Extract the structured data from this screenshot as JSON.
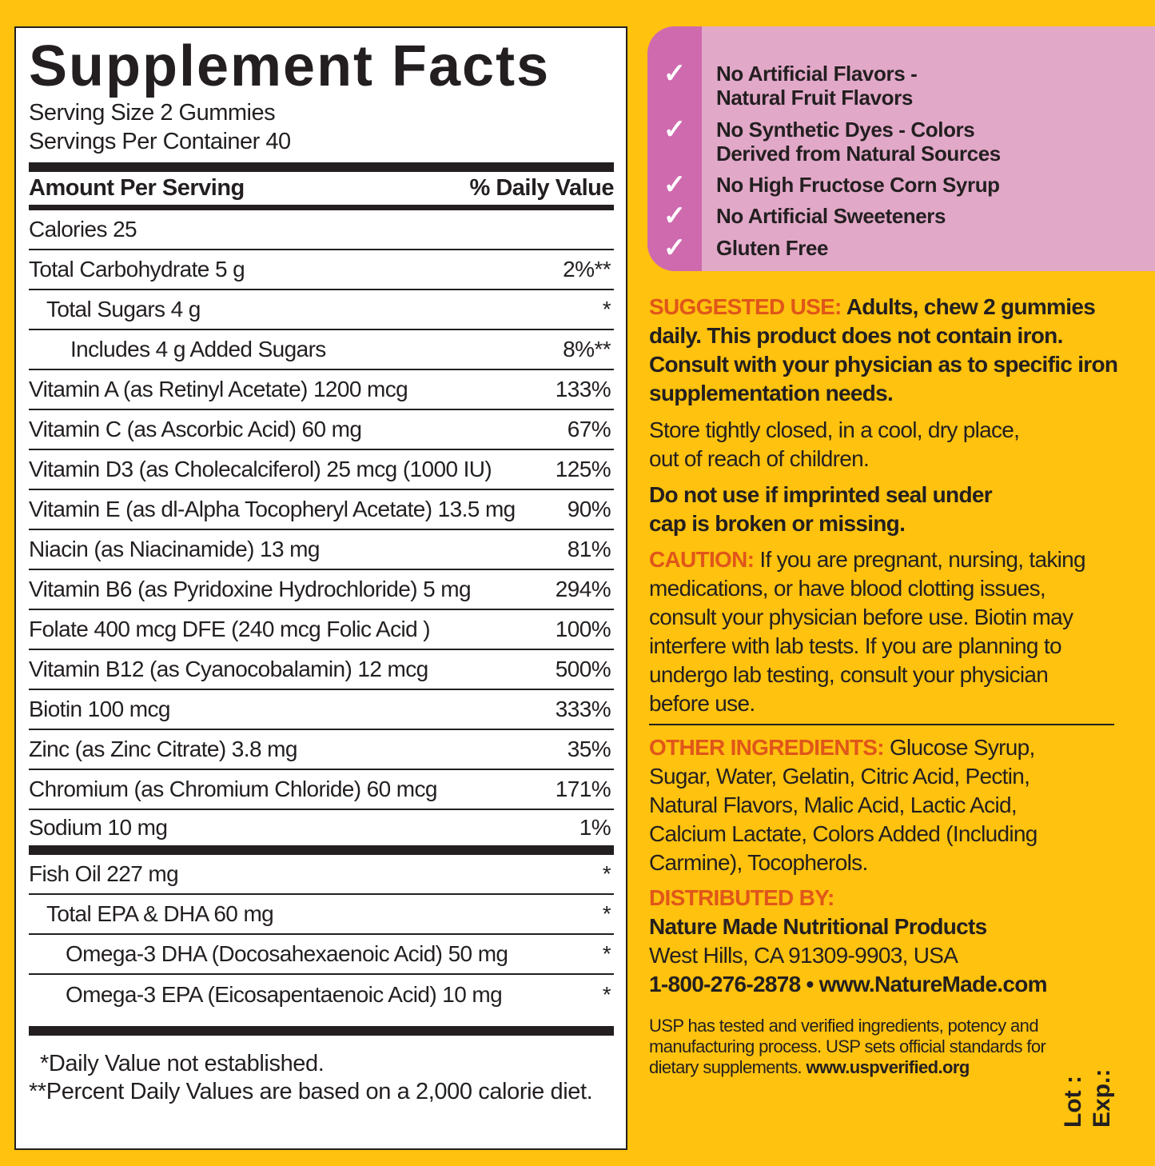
{
  "facts": {
    "title": "Supplement Facts",
    "serving_size": "Serving Size 2 Gummies",
    "servings_per_container": "Servings Per Container 40",
    "amount_header": "Amount Per Serving",
    "dv_header": "% Daily Value",
    "calories": "Calories  25",
    "rows": [
      {
        "label": "Total Carbohydrate  5 g",
        "value": "2%**"
      },
      {
        "label": "Total Sugars  4 g",
        "value": "*"
      },
      {
        "label": "Includes  4 g Added Sugars",
        "value": "8%**"
      },
      {
        "label": "Vitamin A (as Retinyl Acetate)  1200 mcg",
        "value": "133%"
      },
      {
        "label": "Vitamin C (as Ascorbic Acid)  60 mg",
        "value": "67%"
      },
      {
        "label": "Vitamin D3 (as Cholecalciferol) 25 mcg (1000 IU)",
        "value": "125%"
      },
      {
        "label": "Vitamin E (as dl-Alpha Tocopheryl Acetate) 13.5 mg",
        "value": "90%"
      },
      {
        "label": "Niacin (as Niacinamide)  13 mg",
        "value": "81%"
      },
      {
        "label": "Vitamin B6 (as Pyridoxine Hydrochloride)  5 mg",
        "value": "294%"
      },
      {
        "label": "Folate  400 mcg DFE (240 mcg Folic Acid )",
        "value": "100%"
      },
      {
        "label": "Vitamin B12 (as Cyanocobalamin)  12 mcg",
        "value": "500%"
      },
      {
        "label": "Biotin  100 mcg",
        "value": "333%"
      },
      {
        "label": "Zinc (as Zinc Citrate)  3.8 mg",
        "value": "35%"
      },
      {
        "label": "Chromium (as Chromium Chloride)  60 mcg",
        "value": "171%"
      },
      {
        "label": "Sodium  10 mg",
        "value": "1%"
      },
      {
        "label": "Fish Oil  227 mg",
        "value": "*"
      },
      {
        "label": "Total EPA & DHA  60 mg",
        "value": "*"
      },
      {
        "label": "Omega-3 DHA (Docosahexaenoic Acid)  50 mg",
        "value": "*"
      },
      {
        "label": "Omega-3 EPA (Eicosapentaenoic Acid)  10 mg",
        "value": "*"
      }
    ],
    "footnote1": "*Daily Value not established.",
    "footnote2": "**Percent Daily Values are based on a 2,000 calorie diet."
  },
  "claims": {
    "check_icon": "check-icon",
    "colors": {
      "panel": "#E2A8C8",
      "strip": "#CF6AAE"
    },
    "items": [
      {
        "line1": "No Artificial Flavors -",
        "line2": "Natural Fruit Flavors"
      },
      {
        "line1": "No Synthetic Dyes - Colors",
        "line2": "Derived from Natural Sources"
      },
      {
        "line1": "No High Fructose Corn Syrup",
        "line2": ""
      },
      {
        "line1": "No Artificial Sweeteners",
        "line2": ""
      },
      {
        "line1": "Gluten Free",
        "line2": ""
      }
    ]
  },
  "info": {
    "accent": "#E0561A",
    "suggested_label": "SUGGESTED USE:",
    "suggested_text": "Adults, chew 2 gummies daily. This product does not contain iron. Consult with your physician as to specific iron supplementation needs.",
    "storage": "Store tightly closed, in a cool, dry place, out of reach of children.",
    "seal": "Do not use if imprinted seal under cap is broken or missing.",
    "caution_label": "CAUTION:",
    "caution_text": "If you are pregnant, nursing, taking medications, or have blood clotting issues, consult your physician before use. Biotin may interfere with lab tests. If you are planning to undergo lab testing, consult your physician before use.",
    "other_label": "OTHER INGREDIENTS:",
    "other_text": "Glucose Syrup, Sugar, Water, Gelatin, Citric Acid, Pectin, Natural Flavors, Malic Acid, Lactic Acid, Calcium Lactate, Colors Added (Including Carmine), Tocopherols.",
    "distributed_label": "DISTRIBUTED BY:",
    "company": "Nature Made Nutritional Products",
    "address": "West Hills, CA 91309-9903, USA",
    "contact": "1-800-276-2878 • www.NatureMade.com",
    "usp_text": "USP has tested and verified ingredients, potency and manufacturing process. USP sets official standards for dietary supplements.",
    "usp_url": "www.uspverified.org",
    "lot": "Lot :",
    "exp": "Exp.:"
  }
}
